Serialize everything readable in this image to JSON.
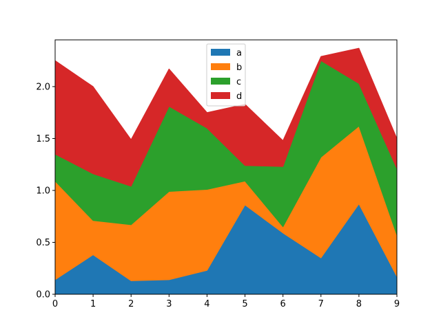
{
  "chart_data": {
    "type": "area",
    "stacked": true,
    "x": [
      0,
      1,
      2,
      3,
      4,
      5,
      6,
      7,
      8,
      9
    ],
    "series": [
      {
        "name": "a",
        "color": "#1f77b4",
        "values": [
          0.14,
          0.38,
          0.13,
          0.14,
          0.23,
          0.86,
          0.59,
          0.35,
          0.87,
          0.17
        ]
      },
      {
        "name": "b",
        "color": "#ff7f0e",
        "values": [
          0.95,
          0.33,
          0.54,
          0.85,
          0.78,
          0.23,
          0.06,
          0.97,
          0.75,
          0.4
        ]
      },
      {
        "name": "c",
        "color": "#2ca02c",
        "values": [
          0.26,
          0.45,
          0.37,
          0.82,
          0.59,
          0.15,
          0.58,
          0.93,
          0.41,
          0.64
        ]
      },
      {
        "name": "d",
        "color": "#d62728",
        "values": [
          0.9,
          0.84,
          0.45,
          0.36,
          0.15,
          0.59,
          0.25,
          0.04,
          0.34,
          0.29
        ]
      }
    ],
    "xlim": [
      0,
      9
    ],
    "ylim": [
      0,
      2.45
    ],
    "xticks": [
      "0",
      "1",
      "2",
      "3",
      "4",
      "5",
      "6",
      "7",
      "8",
      "9"
    ],
    "yticks": [
      "0.0",
      "0.5",
      "1.0",
      "1.5",
      "2.0"
    ],
    "legend_position": "top-center",
    "grid": false
  }
}
